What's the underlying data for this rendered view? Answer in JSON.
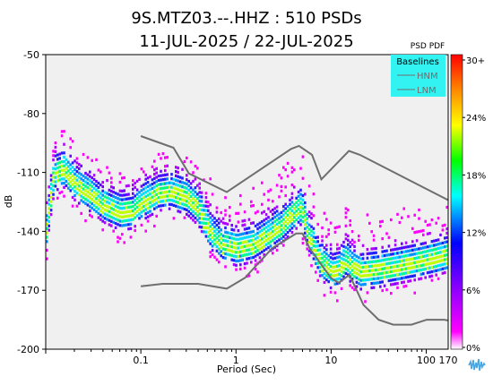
{
  "chart_data": {
    "type": "heatmap",
    "title": "9S.MTZ03.--.HHZ : 510 PSDs",
    "subtitle": "11-JUL-2025 / 22-JUL-2025",
    "xlabel": "Period (Sec)",
    "ylabel": "dB",
    "x_scale": "log",
    "xlim": [
      0.01,
      170
    ],
    "ylim": [
      -200,
      -50
    ],
    "x_ticks": [
      {
        "value": 0.1,
        "label": "0.1"
      },
      {
        "value": 1,
        "label": "1"
      },
      {
        "value": 10,
        "label": "10"
      },
      {
        "value": 100,
        "label": "100"
      },
      {
        "value": 170,
        "label": "170"
      }
    ],
    "y_ticks": [
      -50,
      -80,
      -110,
      -140,
      -170,
      -200
    ],
    "legend": {
      "title": "Baselines",
      "items": [
        {
          "name": "HNM",
          "color": "#6e6e6e"
        },
        {
          "name": "LNM",
          "color": "#6e6e6e"
        }
      ]
    },
    "colorbar": {
      "title": "PSD PDF",
      "ticks": [
        "30+",
        "24%",
        "18%",
        "12%",
        "6%",
        "0%"
      ],
      "colors": [
        "#ff0000",
        "#ff8800",
        "#ffff00",
        "#00ff00",
        "#00ffff",
        "#0000ff",
        "#8000ff",
        "#ff00ff",
        "#ffffff"
      ]
    },
    "baselines": [
      {
        "name": "HNM",
        "x": [
          0.1,
          0.22,
          0.32,
          0.8,
          3.8,
          4.6,
          6.3,
          7.9,
          15.4,
          20,
          354
        ],
        "y": [
          -91.5,
          -97.4,
          -110.5,
          -120,
          -98,
          -96.5,
          -101,
          -113.5,
          -99,
          -101,
          -132
        ]
      },
      {
        "name": "LNM",
        "x": [
          0.1,
          0.17,
          0.4,
          0.8,
          1.24,
          2.4,
          4.3,
          5,
          6,
          10,
          12,
          15.6,
          21.9,
          31.6,
          45,
          70,
          101,
          154,
          328,
          600
        ],
        "y": [
          -168,
          -166.7,
          -166.7,
          -169.2,
          -163.7,
          -148.6,
          -141.1,
          -141.1,
          -149,
          -163.8,
          -166.2,
          -162.1,
          -177.5,
          -185,
          -187.5,
          -187.5,
          -185,
          -185,
          -187.5,
          -184.4
        ]
      }
    ],
    "psd_modes": {
      "x": [
        0.01,
        0.012,
        0.015,
        0.02,
        0.03,
        0.04,
        0.06,
        0.08,
        0.1,
        0.15,
        0.2,
        0.3,
        0.4,
        0.5,
        0.7,
        1.0,
        1.5,
        2.0,
        3.0,
        4.0,
        4.7,
        5.5,
        6.5,
        8.0,
        10.0,
        12.0,
        14.0,
        17.0,
        20.0,
        30.0,
        50.0,
        80.0,
        120.0,
        170.0
      ],
      "y": [
        -140,
        -112,
        -110,
        -117,
        -123,
        -128,
        -132,
        -131,
        -127,
        -122,
        -121,
        -124,
        -130,
        -140,
        -148,
        -150,
        -148,
        -144,
        -138,
        -132,
        -129,
        -140,
        -150,
        -158,
        -162,
        -161,
        -156,
        -160,
        -162,
        -161,
        -159,
        -157,
        -155,
        -153
      ]
    }
  },
  "logo": {
    "icon": "waveform-logo-icon"
  }
}
